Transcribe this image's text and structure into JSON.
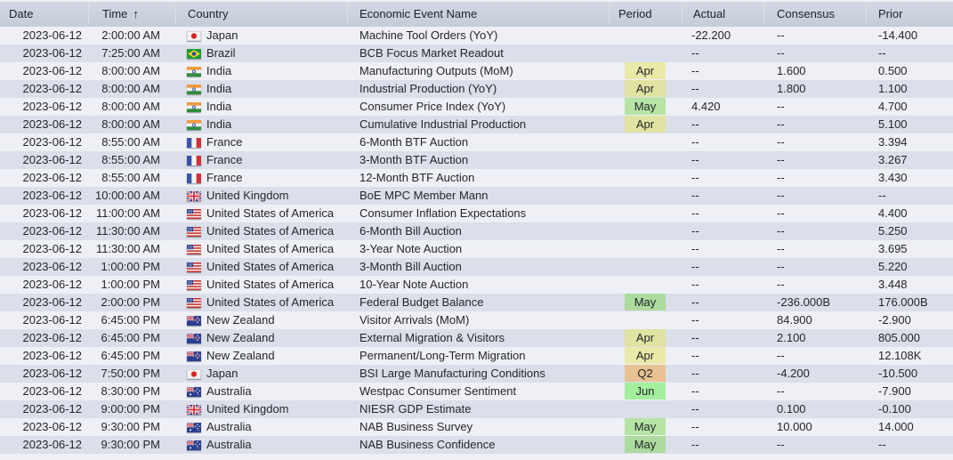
{
  "table": {
    "sort_icon": "↑",
    "columns": [
      {
        "id": "date",
        "label": "Date"
      },
      {
        "id": "time",
        "label": "Time"
      },
      {
        "id": "country",
        "label": "Country"
      },
      {
        "id": "event",
        "label": "Economic Event Name"
      },
      {
        "id": "period",
        "label": "Period"
      },
      {
        "id": "actual",
        "label": "Actual"
      },
      {
        "id": "consensus",
        "label": "Consensus"
      },
      {
        "id": "prior",
        "label": "Prior"
      }
    ],
    "rows": [
      {
        "date": "2023-06-12",
        "time": "2:00:00 AM",
        "flag": "jp",
        "country": "Japan",
        "event": "Machine Tool Orders (YoY)",
        "period": "",
        "actual": "-22.200",
        "consensus": "--",
        "prior": "-14.400"
      },
      {
        "date": "2023-06-12",
        "time": "7:25:00 AM",
        "flag": "br",
        "country": "Brazil",
        "event": "BCB Focus Market Readout",
        "period": "",
        "actual": "--",
        "consensus": "--",
        "prior": "--"
      },
      {
        "date": "2023-06-12",
        "time": "8:00:00 AM",
        "flag": "in",
        "country": "India",
        "event": "Manufacturing Outputs (MoM)",
        "period": "Apr",
        "actual": "--",
        "consensus": "1.600",
        "prior": "0.500"
      },
      {
        "date": "2023-06-12",
        "time": "8:00:00 AM",
        "flag": "in",
        "country": "India",
        "event": "Industrial Production (YoY)",
        "period": "Apr",
        "actual": "--",
        "consensus": "1.800",
        "prior": "1.100"
      },
      {
        "date": "2023-06-12",
        "time": "8:00:00 AM",
        "flag": "in",
        "country": "India",
        "event": "Consumer Price Index (YoY)",
        "period": "May",
        "actual": "4.420",
        "consensus": "--",
        "prior": "4.700"
      },
      {
        "date": "2023-06-12",
        "time": "8:00:00 AM",
        "flag": "in",
        "country": "India",
        "event": "Cumulative Industrial Production",
        "period": "Apr",
        "actual": "--",
        "consensus": "--",
        "prior": "5.100"
      },
      {
        "date": "2023-06-12",
        "time": "8:55:00 AM",
        "flag": "fr",
        "country": "France",
        "event": "6-Month BTF Auction",
        "period": "",
        "actual": "--",
        "consensus": "--",
        "prior": "3.394"
      },
      {
        "date": "2023-06-12",
        "time": "8:55:00 AM",
        "flag": "fr",
        "country": "France",
        "event": "3-Month BTF Auction",
        "period": "",
        "actual": "--",
        "consensus": "--",
        "prior": "3.267"
      },
      {
        "date": "2023-06-12",
        "time": "8:55:00 AM",
        "flag": "fr",
        "country": "France",
        "event": "12-Month BTF Auction",
        "period": "",
        "actual": "--",
        "consensus": "--",
        "prior": "3.430"
      },
      {
        "date": "2023-06-12",
        "time": "10:00:00 AM",
        "flag": "gb",
        "country": "United Kingdom",
        "event": "BoE MPC Member Mann",
        "period": "",
        "actual": "--",
        "consensus": "--",
        "prior": "--"
      },
      {
        "date": "2023-06-12",
        "time": "11:00:00 AM",
        "flag": "us",
        "country": "United States of America",
        "event": "Consumer Inflation Expectations",
        "period": "",
        "actual": "--",
        "consensus": "--",
        "prior": "4.400"
      },
      {
        "date": "2023-06-12",
        "time": "11:30:00 AM",
        "flag": "us",
        "country": "United States of America",
        "event": "6-Month Bill Auction",
        "period": "",
        "actual": "--",
        "consensus": "--",
        "prior": "5.250"
      },
      {
        "date": "2023-06-12",
        "time": "11:30:00 AM",
        "flag": "us",
        "country": "United States of America",
        "event": "3-Year Note Auction",
        "period": "",
        "actual": "--",
        "consensus": "--",
        "prior": "3.695"
      },
      {
        "date": "2023-06-12",
        "time": "1:00:00 PM",
        "flag": "us",
        "country": "United States of America",
        "event": "3-Month Bill Auction",
        "period": "",
        "actual": "--",
        "consensus": "--",
        "prior": "5.220"
      },
      {
        "date": "2023-06-12",
        "time": "1:00:00 PM",
        "flag": "us",
        "country": "United States of America",
        "event": "10-Year Note Auction",
        "period": "",
        "actual": "--",
        "consensus": "--",
        "prior": "3.448"
      },
      {
        "date": "2023-06-12",
        "time": "2:00:00 PM",
        "flag": "us",
        "country": "United States of America",
        "event": "Federal Budget Balance",
        "period": "May",
        "actual": "--",
        "consensus": "-236.000B",
        "prior": "176.000B"
      },
      {
        "date": "2023-06-12",
        "time": "6:45:00 PM",
        "flag": "nz",
        "country": "New Zealand",
        "event": "Visitor Arrivals (MoM)",
        "period": "",
        "actual": "--",
        "consensus": "84.900",
        "prior": "-2.900"
      },
      {
        "date": "2023-06-12",
        "time": "6:45:00 PM",
        "flag": "nz",
        "country": "New Zealand",
        "event": "External Migration & Visitors",
        "period": "Apr",
        "actual": "--",
        "consensus": "2.100",
        "prior": "805.000"
      },
      {
        "date": "2023-06-12",
        "time": "6:45:00 PM",
        "flag": "nz",
        "country": "New Zealand",
        "event": "Permanent/Long-Term Migration",
        "period": "Apr",
        "actual": "--",
        "consensus": "--",
        "prior": "12.108K"
      },
      {
        "date": "2023-06-12",
        "time": "7:50:00 PM",
        "flag": "jp",
        "country": "Japan",
        "event": "BSI Large Manufacturing Conditions",
        "period": "Q2",
        "actual": "--",
        "consensus": "-4.200",
        "prior": "-10.500"
      },
      {
        "date": "2023-06-12",
        "time": "8:30:00 PM",
        "flag": "au",
        "country": "Australia",
        "event": "Westpac Consumer Sentiment",
        "period": "Jun",
        "actual": "--",
        "consensus": "--",
        "prior": "-7.900"
      },
      {
        "date": "2023-06-12",
        "time": "9:00:00 PM",
        "flag": "gb",
        "country": "United Kingdom",
        "event": "NIESR GDP Estimate",
        "period": "",
        "actual": "--",
        "consensus": "0.100",
        "prior": "-0.100"
      },
      {
        "date": "2023-06-12",
        "time": "9:30:00 PM",
        "flag": "au",
        "country": "Australia",
        "event": "NAB Business Survey",
        "period": "May",
        "actual": "--",
        "consensus": "10.000",
        "prior": "14.000"
      },
      {
        "date": "2023-06-12",
        "time": "9:30:00 PM",
        "flag": "au",
        "country": "Australia",
        "event": "NAB Business Confidence",
        "period": "May",
        "actual": "--",
        "consensus": "--",
        "prior": "--"
      }
    ]
  },
  "colors": {
    "header_bg": "#c9d0dc",
    "row_light": "#eef0f6",
    "row_dark": "#dbdfe9",
    "badge_apr": "#eef0b4",
    "badge_may": "#b6e49c",
    "badge_jun": "#a9ef9d",
    "badge_q2": "#f1cf9e"
  }
}
